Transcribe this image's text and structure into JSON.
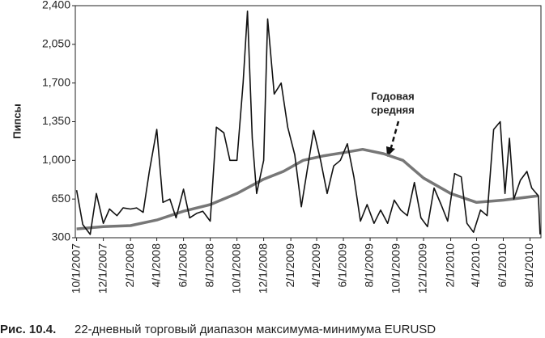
{
  "chart_data": {
    "type": "line",
    "ylabel": "Пипсы",
    "caption_number": "Рис. 10.4.",
    "caption": "22-дневный торговый диапазон максимума-минимума EURUSD",
    "annotation": [
      "Годовая",
      "средняя"
    ],
    "xlim": [
      "2007-09-28",
      "2010-08-26"
    ],
    "xticks": [
      {
        "value": "2007-10-01",
        "label": "10/1/2007"
      },
      {
        "value": "2007-12-01",
        "label": "12/1/2007"
      },
      {
        "value": "2008-02-01",
        "label": "2/1/2008"
      },
      {
        "value": "2008-04-01",
        "label": "4/1/2008"
      },
      {
        "value": "2008-06-01",
        "label": "6/1/2008"
      },
      {
        "value": "2008-08-01",
        "label": "8/1/2008"
      },
      {
        "value": "2008-10-01",
        "label": "10/1/2008"
      },
      {
        "value": "2008-12-01",
        "label": "12/1/2008"
      },
      {
        "value": "2009-02-01",
        "label": "2/1/2009"
      },
      {
        "value": "2009-04-01",
        "label": "4/1/2009"
      },
      {
        "value": "2009-06-01",
        "label": "6/1/2009"
      },
      {
        "value": "2009-08-01",
        "label": "8/1/2009"
      },
      {
        "value": "2009-10-01",
        "label": "10/1/2009"
      },
      {
        "value": "2009-12-01",
        "label": "12/1/2009"
      },
      {
        "value": "2010-02-01",
        "label": "2/1/2010"
      },
      {
        "value": "2010-04-01",
        "label": "4/1/2010"
      },
      {
        "value": "2010-06-01",
        "label": "6/1/2010"
      },
      {
        "value": "2010-08-01",
        "label": "8/1/2010"
      }
    ],
    "ylim": [
      300,
      2400
    ],
    "yticks": [
      300,
      650,
      {
        "value": 1000,
        "label": "1,000"
      },
      {
        "value": 1350,
        "label": "1,350"
      },
      {
        "value": 1700,
        "label": "1,700"
      },
      {
        "value": 2050,
        "label": "2,050"
      },
      {
        "value": 2400,
        "label": "2,400"
      }
    ],
    "series": [
      {
        "color": "#111111",
        "x": [
          "2007-10-01",
          "2007-10-15",
          "2007-11-01",
          "2007-11-15",
          "2007-12-01",
          "2007-12-15",
          "2008-01-01",
          "2008-01-15",
          "2008-02-01",
          "2008-02-15",
          "2008-03-01",
          "2008-03-15",
          "2008-04-01",
          "2008-04-15",
          "2008-05-01",
          "2008-05-15",
          "2008-06-01",
          "2008-06-15",
          "2008-07-01",
          "2008-07-15",
          "2008-08-01",
          "2008-08-15",
          "2008-09-01",
          "2008-09-15",
          "2008-10-01",
          "2008-10-15",
          "2008-10-25",
          "2008-11-05",
          "2008-11-15",
          "2008-12-01",
          "2008-12-10",
          "2008-12-25",
          "2009-01-10",
          "2009-01-25",
          "2009-02-10",
          "2009-02-25",
          "2009-03-10",
          "2009-03-25",
          "2009-04-10",
          "2009-04-25",
          "2009-05-10",
          "2009-05-25",
          "2009-06-10",
          "2009-06-25",
          "2009-07-10",
          "2009-07-25",
          "2009-08-10",
          "2009-08-25",
          "2009-09-10",
          "2009-09-25",
          "2009-10-10",
          "2009-10-25",
          "2009-11-10",
          "2009-11-25",
          "2009-12-10",
          "2009-12-25",
          "2010-01-10",
          "2010-01-25",
          "2010-02-10",
          "2010-02-25",
          "2010-03-10",
          "2010-03-25",
          "2010-04-10",
          "2010-04-25",
          "2010-05-10",
          "2010-05-25",
          "2010-06-05",
          "2010-06-15",
          "2010-06-25",
          "2010-07-10",
          "2010-07-25",
          "2010-08-05",
          "2010-08-20",
          "2010-08-24"
        ],
        "values": [
          730,
          420,
          330,
          700,
          430,
          560,
          500,
          570,
          560,
          570,
          530,
          900,
          1280,
          620,
          650,
          480,
          740,
          480,
          520,
          540,
          450,
          1300,
          1250,
          1000,
          1000,
          1700,
          2350,
          1200,
          700,
          1000,
          2280,
          1600,
          1700,
          1300,
          1050,
          580,
          900,
          1270,
          1000,
          700,
          950,
          1000,
          1150,
          850,
          450,
          600,
          430,
          550,
          430,
          640,
          550,
          500,
          800,
          480,
          400,
          750,
          600,
          450,
          880,
          850,
          430,
          350,
          550,
          500,
          1280,
          1350,
          700,
          1200,
          650,
          820,
          900,
          750,
          680,
          330
        ]
      },
      {
        "color": "#777777",
        "x": [
          "2007-10-01",
          "2007-12-01",
          "2008-02-01",
          "2008-04-01",
          "2008-06-01",
          "2008-08-01",
          "2008-10-01",
          "2008-12-01",
          "2009-01-15",
          "2009-03-01",
          "2009-04-15",
          "2009-06-01",
          "2009-07-15",
          "2009-09-01",
          "2009-10-15",
          "2009-12-01",
          "2010-02-01",
          "2010-04-01",
          "2010-06-01",
          "2010-08-20"
        ],
        "values": [
          380,
          400,
          410,
          460,
          540,
          600,
          700,
          830,
          900,
          1000,
          1040,
          1070,
          1100,
          1060,
          1000,
          840,
          700,
          620,
          640,
          680
        ]
      }
    ]
  }
}
